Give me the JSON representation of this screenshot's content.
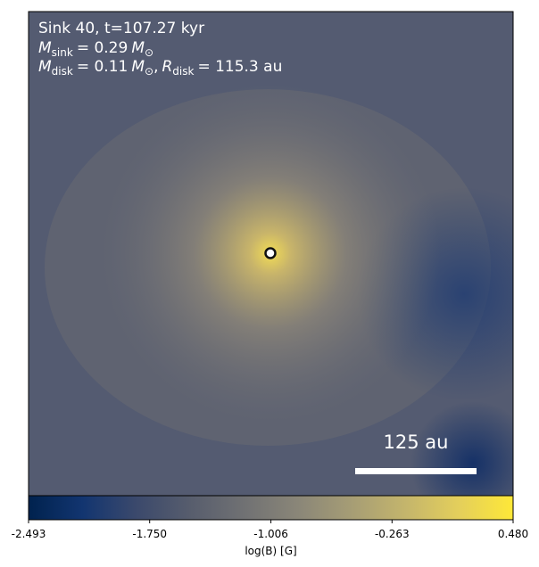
{
  "chart_data": {
    "type": "colormap",
    "title": "Sink 40, t=107.27 kyr",
    "sink_mass": {
      "symbol": "M",
      "subscript": "sink",
      "value": "= 0.29",
      "unit": "M",
      "unit_subscript": "⊙"
    },
    "disk": {
      "symbol": "M",
      "subscript": "disk",
      "value": "= 0.11",
      "unit": "M",
      "unit_subscript": "⊙",
      "separator": ",",
      "radius_symbol": "R",
      "radius_subscript": "disk",
      "radius_value": "= 115.3 au"
    },
    "scale_bar_label": "125 au",
    "colorbar": {
      "label": "log(B) [G]",
      "clim": [
        -2.493,
        0.48
      ],
      "ticks": [
        -2.493,
        {
          "value": -1.75,
          "label": "-1.750"
        },
        -1.006,
        -0.263,
        {
          "value": 0.48,
          "label": "0.480"
        }
      ],
      "colors": [
        "#00224e",
        "#123570",
        "#3b496c",
        "#575d6d",
        "#707173",
        "#8a8678",
        "#a69d75",
        "#c4b56c",
        "#e4cf5b",
        "#fee838"
      ]
    }
  }
}
